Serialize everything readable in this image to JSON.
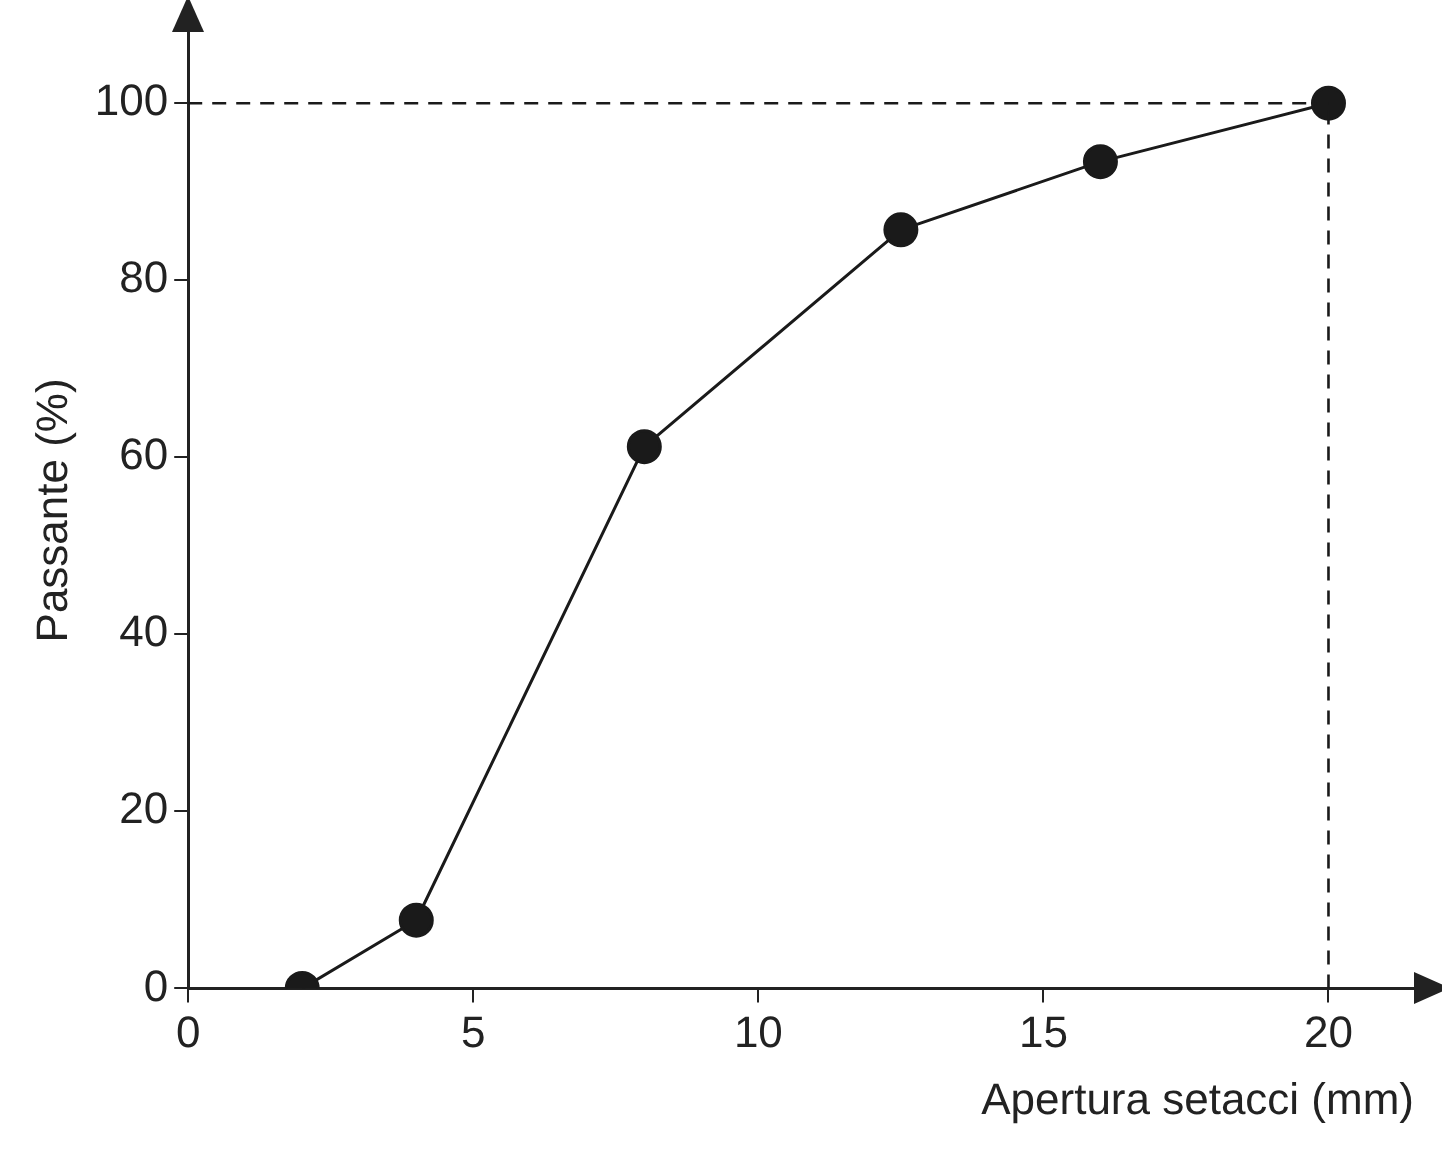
{
  "chart_data": {
    "type": "line",
    "xlabel": "Apertura setacci (mm)",
    "ylabel": "Passante (%)",
    "x": [
      2,
      4,
      8,
      12.5,
      16,
      20
    ],
    "series": [
      {
        "color": "#1a1a1a",
        "values": [
          0,
          7.7,
          61.2,
          85.7,
          93.4,
          100
        ]
      }
    ],
    "xlim": [
      0,
      21.5
    ],
    "xticks": [
      0,
      5,
      10,
      15,
      20
    ],
    "ylim": [
      0,
      108
    ],
    "yticks": [
      0,
      20,
      40,
      60,
      80,
      100
    ],
    "ref_lines": [
      {
        "axis": "y",
        "value": 100,
        "color": "#1a1a1a",
        "line_style": "dashed"
      },
      {
        "axis": "x",
        "value": 20,
        "color": "#1a1a1a",
        "line_style": "dashed"
      }
    ],
    "grid": false,
    "legend": false,
    "marker": "circle",
    "line_style": "solid"
  }
}
